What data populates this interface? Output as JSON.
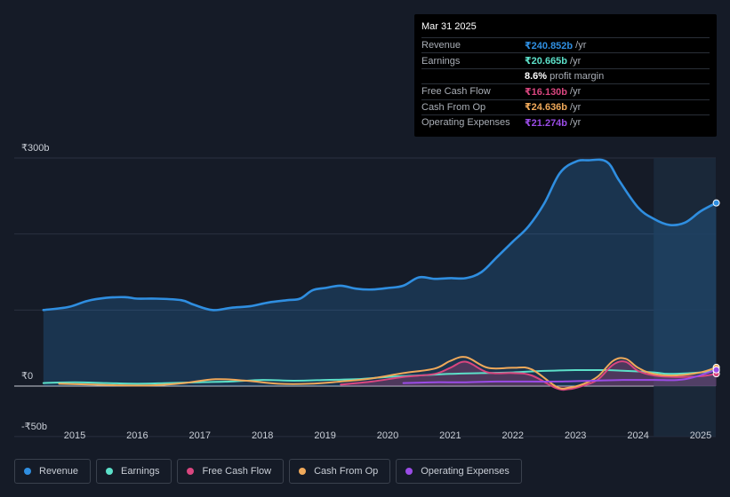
{
  "tooltip": {
    "date": "Mar 31 2025",
    "rows": [
      {
        "label": "Revenue",
        "value": "₹240.852b",
        "unit": "/yr",
        "color": "#2f8ee0"
      },
      {
        "label": "Earnings",
        "value": "₹20.665b",
        "unit": "/yr",
        "color": "#5ce0c9"
      },
      {
        "label": "",
        "value": "8.6%",
        "unit": "profit margin",
        "color": "#ffffff"
      },
      {
        "label": "Free Cash Flow",
        "value": "₹16.130b",
        "unit": "/yr",
        "color": "#d9467f"
      },
      {
        "label": "Cash From Op",
        "value": "₹24.636b",
        "unit": "/yr",
        "color": "#f0a95a"
      },
      {
        "label": "Operating Expenses",
        "value": "₹21.274b",
        "unit": "/yr",
        "color": "#9a4ce6"
      }
    ]
  },
  "legend": [
    {
      "label": "Revenue",
      "color": "#2f8ee0"
    },
    {
      "label": "Earnings",
      "color": "#5ce0c9"
    },
    {
      "label": "Free Cash Flow",
      "color": "#d9467f"
    },
    {
      "label": "Cash From Op",
      "color": "#f0a95a"
    },
    {
      "label": "Operating Expenses",
      "color": "#9a4ce6"
    }
  ],
  "chart_data": {
    "type": "line",
    "title": "",
    "xlabel": "",
    "ylabel": "",
    "y_tick_labels": [
      "₹300b",
      "₹0",
      "-₹50b"
    ],
    "ylim": [
      -50,
      300
    ],
    "xlim": [
      2014.5,
      2025.25
    ],
    "x_ticks": [
      2015,
      2016,
      2017,
      2018,
      2019,
      2020,
      2021,
      2022,
      2023,
      2024,
      2025
    ],
    "forecast_shade_start": 2024.25,
    "series": [
      {
        "name": "Revenue",
        "color": "#2f8ee0",
        "fill": true,
        "x": [
          2014.5,
          2014.9,
          2015.2,
          2015.5,
          2015.8,
          2016.0,
          2016.3,
          2016.7,
          2016.9,
          2017.2,
          2017.5,
          2017.8,
          2018.1,
          2018.4,
          2018.6,
          2018.8,
          2019.0,
          2019.25,
          2019.5,
          2019.75,
          2020.0,
          2020.25,
          2020.5,
          2020.75,
          2021.0,
          2021.25,
          2021.5,
          2021.75,
          2022.0,
          2022.25,
          2022.5,
          2022.75,
          2023.0,
          2023.2,
          2023.5,
          2023.7,
          2024.0,
          2024.25,
          2024.5,
          2024.75,
          2025.0,
          2025.25
        ],
        "values": [
          100,
          104,
          112,
          116,
          117,
          115,
          115,
          113,
          107,
          100,
          103,
          105,
          110,
          113,
          115,
          126,
          129,
          132,
          128,
          127,
          129,
          132,
          143,
          141,
          142,
          142,
          150,
          170,
          190,
          210,
          240,
          280,
          295,
          297,
          295,
          270,
          235,
          220,
          212,
          215,
          230,
          240.852
        ]
      },
      {
        "name": "Earnings",
        "color": "#5ce0c9",
        "fill": false,
        "x": [
          2014.5,
          2015.0,
          2015.5,
          2016.0,
          2016.5,
          2017.0,
          2017.5,
          2018.0,
          2018.5,
          2019.0,
          2019.5,
          2020.0,
          2020.5,
          2021.0,
          2021.5,
          2022.0,
          2022.5,
          2023.0,
          2023.5,
          2023.8,
          2024.25,
          2024.5,
          2025.0,
          2025.25
        ],
        "values": [
          4,
          5,
          4,
          3,
          4,
          5,
          6,
          8,
          7,
          8,
          9,
          12,
          14,
          16,
          17,
          18,
          20,
          21,
          21,
          20,
          18,
          16,
          18,
          20.665
        ]
      },
      {
        "name": "Free Cash Flow",
        "color": "#d9467f",
        "fill": true,
        "x": [
          2019.25,
          2019.75,
          2020.25,
          2020.75,
          2021.0,
          2021.25,
          2021.6,
          2022.0,
          2022.3,
          2022.7,
          2022.9,
          2023.1,
          2023.35,
          2023.6,
          2023.8,
          2024.0,
          2024.25,
          2024.6,
          2025.0,
          2025.25
        ],
        "values": [
          2,
          6,
          12,
          16,
          24,
          32,
          18,
          17,
          14,
          -3,
          -4,
          0,
          8,
          28,
          32,
          20,
          14,
          12,
          13,
          16.13
        ]
      },
      {
        "name": "Cash From Op",
        "color": "#f0a95a",
        "fill": false,
        "x": [
          2014.75,
          2015.25,
          2015.75,
          2016.25,
          2016.75,
          2017.25,
          2017.75,
          2018.25,
          2018.75,
          2019.25,
          2019.75,
          2020.25,
          2020.75,
          2021.0,
          2021.25,
          2021.6,
          2022.0,
          2022.3,
          2022.7,
          2022.9,
          2023.1,
          2023.35,
          2023.6,
          2023.8,
          2024.0,
          2024.25,
          2024.6,
          2025.0,
          2025.25
        ],
        "values": [
          3,
          2,
          1,
          1,
          4,
          9,
          7,
          3,
          3,
          6,
          10,
          17,
          23,
          33,
          38,
          24,
          24,
          22,
          -1,
          -2,
          2,
          12,
          33,
          36,
          24,
          16,
          14,
          18,
          24.636
        ]
      },
      {
        "name": "Operating Expenses",
        "color": "#9a4ce6",
        "fill": false,
        "x": [
          2020.25,
          2020.75,
          2021.25,
          2021.75,
          2022.25,
          2022.75,
          2023.25,
          2023.75,
          2024.25,
          2024.75,
          2025.25
        ],
        "values": [
          4,
          5,
          5,
          6,
          6,
          6,
          7,
          8,
          8,
          9,
          21.274
        ]
      }
    ]
  }
}
